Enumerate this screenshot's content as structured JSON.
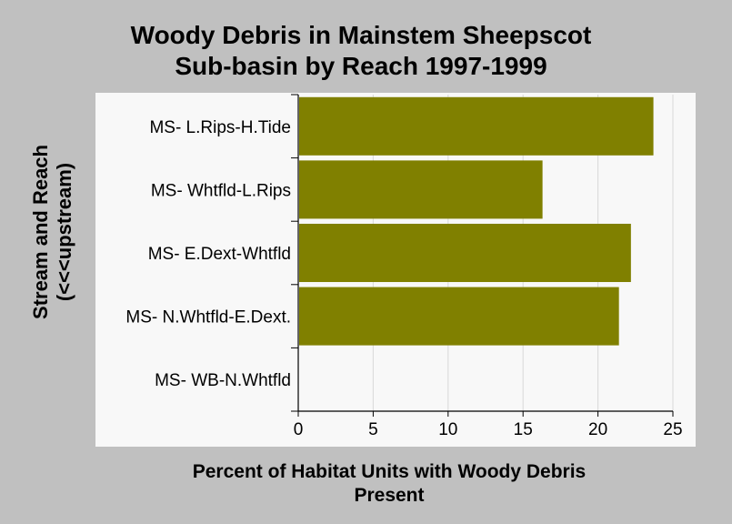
{
  "chart_data": {
    "type": "bar",
    "orientation": "horizontal",
    "title_lines": [
      "Woody Debris in Mainstem Sheepscot",
      "Sub-basin by Reach 1997-1999"
    ],
    "xlabel_lines": [
      "Percent of Habitat Units with Woody Debris",
      "Present"
    ],
    "ylabel_lines": [
      "Stream and Reach",
      "(<<<upstream)"
    ],
    "categories": [
      "MS- L.Rips-H.Tide",
      "MS- Whtfld-L.Rips",
      "MS- E.Dext-Whtfld",
      "MS- N.Whtfld-E.Dext.",
      "MS- WB-N.Whtfld"
    ],
    "values": [
      23.7,
      16.3,
      22.2,
      21.4,
      0
    ],
    "xlim": [
      0,
      25
    ],
    "xticks": [
      "0",
      "5",
      "10",
      "15",
      "20",
      "25"
    ],
    "grid": "vertical",
    "legend": "none",
    "bar_color": "#808000",
    "plot_background": "#f8f8f8",
    "page_background": "#c0c0c0"
  }
}
